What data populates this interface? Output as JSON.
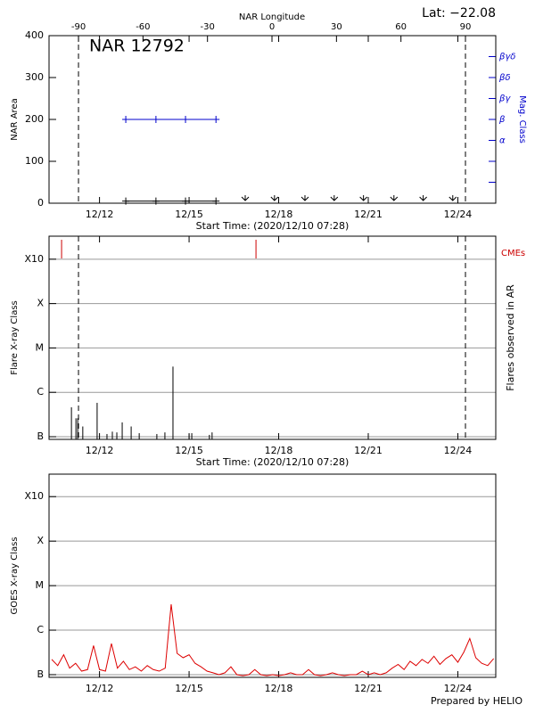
{
  "chart_data": [
    {
      "type": "nar",
      "title": "NAR 12792",
      "annotation": "Lat: −22.08",
      "xlabel": "Start Time: (2020/12/10 07:28)",
      "ylabel": "NAR Area",
      "y2label": "Mag. Class",
      "top_xlabel": "NAR Longitude",
      "xlim": [
        10.31,
        25.27
      ],
      "xticks": [
        {
          "value": 12,
          "label": "12/12"
        },
        {
          "value": 15,
          "label": "12/15"
        },
        {
          "value": 18,
          "label": "12/18"
        },
        {
          "value": 21,
          "label": "12/21"
        },
        {
          "value": 24,
          "label": "12/24"
        }
      ],
      "ylim": [
        0,
        400
      ],
      "yticks": [
        0,
        100,
        200,
        300,
        400
      ],
      "top_xlim": [
        -103.7,
        104.1
      ],
      "top_xticks": [
        -90,
        -60,
        -30,
        0,
        30,
        60,
        90
      ],
      "limb_lines": [
        -90,
        90
      ],
      "y2lim": [
        0,
        8
      ],
      "y2ticks": [
        {
          "value": 3,
          "label": "α"
        },
        {
          "value": 4,
          "label": "β"
        },
        {
          "value": 5,
          "label": "βγ"
        },
        {
          "value": 6,
          "label": "βδ"
        },
        {
          "value": 7,
          "label": "βγδ"
        }
      ],
      "y2minor_ticks": [
        1,
        2
      ],
      "y2color": "#0000cc",
      "x": [
        12.88,
        13.89,
        14.88,
        15.9
      ],
      "series": [
        {
          "color": "#000000",
          "values": [
            5,
            5,
            5,
            5
          ]
        },
        {
          "color": "#0000cc",
          "axis": "y2",
          "values": [
            4,
            4,
            4,
            4
          ]
        }
      ],
      "arrows_x": [
        16.88,
        17.86,
        18.88,
        19.86,
        20.84,
        21.86,
        22.84,
        23.83
      ]
    },
    {
      "type": "flares",
      "xlabel": "Start Time: (2020/12/10 07:28)",
      "ylabel": "Flare X-ray Class",
      "y2label": "Flares observed in AR",
      "cme_label": "CMEs",
      "cme_color": "#cc0000",
      "color": "#000000",
      "xlim": [
        10.31,
        25.27
      ],
      "xticks": [
        {
          "value": 12,
          "label": "12/12"
        },
        {
          "value": 15,
          "label": "12/15"
        },
        {
          "value": 18,
          "label": "12/18"
        },
        {
          "value": 21,
          "label": "12/21"
        },
        {
          "value": 24,
          "label": "12/24"
        }
      ],
      "log": true,
      "ylim": [
        8.7e-08,
        0.0033
      ],
      "yticks": [
        {
          "value": 1e-07,
          "label": "B"
        },
        {
          "value": 1e-06,
          "label": "C"
        },
        {
          "value": 1e-05,
          "label": "M"
        },
        {
          "value": 0.0001,
          "label": "X"
        },
        {
          "value": 0.001,
          "label": "X10"
        }
      ],
      "grid": true,
      "limb_lines": [
        -90,
        90
      ],
      "x": [
        11.06,
        11.21,
        11.27,
        11.44,
        11.92,
        12.25,
        12.43,
        12.58,
        12.76,
        13.06,
        13.33,
        13.92,
        14.19,
        14.46,
        15.0,
        15.09,
        15.68,
        15.77
      ],
      "values": [
        4.6e-07,
        2.6e-07,
        2.6e-07,
        1.7e-07,
        5.8e-07,
        1.15e-07,
        1.3e-07,
        1.25e-07,
        2.1e-07,
        1.7e-07,
        1.2e-07,
        1.15e-07,
        1.25e-07,
        3.8e-06,
        1.15e-07,
        1.2e-07,
        1.1e-07,
        1.25e-07
      ],
      "cmes_x": [
        10.73,
        17.24
      ]
    },
    {
      "type": "goes",
      "ylabel": "GOES X-ray Class",
      "color": "#dd0000",
      "xlim": [
        10.31,
        25.27
      ],
      "xticks": [
        {
          "value": 12,
          "label": "12/12"
        },
        {
          "value": 15,
          "label": "12/15"
        },
        {
          "value": 18,
          "label": "12/18"
        },
        {
          "value": 21,
          "label": "12/21"
        },
        {
          "value": 24,
          "label": "12/24"
        }
      ],
      "log": true,
      "ylim": [
        8.7e-08,
        0.0032
      ],
      "yticks": [
        {
          "value": 1e-07,
          "label": "B"
        },
        {
          "value": 1e-06,
          "label": "C"
        },
        {
          "value": 1e-05,
          "label": "M"
        },
        {
          "value": 0.0001,
          "label": "X"
        },
        {
          "value": 0.001,
          "label": "X10"
        }
      ],
      "grid": true,
      "x": [
        10.4,
        10.6,
        10.8,
        11.0,
        11.2,
        11.4,
        11.6,
        11.8,
        12.0,
        12.2,
        12.4,
        12.6,
        12.8,
        13.0,
        13.2,
        13.4,
        13.6,
        13.8,
        14.0,
        14.2,
        14.4,
        14.6,
        14.8,
        15.0,
        15.2,
        15.4,
        15.6,
        15.8,
        16.0,
        16.2,
        16.4,
        16.6,
        16.8,
        17.0,
        17.2,
        17.4,
        17.6,
        17.8,
        18.0,
        18.2,
        18.4,
        18.6,
        18.8,
        19.0,
        19.2,
        19.4,
        19.6,
        19.8,
        20.0,
        20.2,
        20.4,
        20.6,
        20.8,
        21.0,
        21.2,
        21.4,
        21.6,
        21.8,
        22.0,
        22.2,
        22.4,
        22.6,
        22.8,
        23.0,
        23.2,
        23.4,
        23.6,
        23.8,
        24.0,
        24.2,
        24.4,
        24.6,
        24.8,
        25.0,
        25.2
      ],
      "values": [
        2.2e-07,
        1.6e-07,
        2.8e-07,
        1.4e-07,
        1.8e-07,
        1.2e-07,
        1.3e-07,
        4.5e-07,
        1.3e-07,
        1.2e-07,
        5e-07,
        1.4e-07,
        2e-07,
        1.3e-07,
        1.5e-07,
        1.2e-07,
        1.6e-07,
        1.3e-07,
        1.2e-07,
        1.4e-07,
        3.8e-06,
        3e-07,
        2.4e-07,
        2.8e-07,
        1.8e-07,
        1.5e-07,
        1.2e-07,
        1.1e-07,
        1e-07,
        1.1e-07,
        1.5e-07,
        1e-07,
        9.5e-08,
        1e-07,
        1.3e-07,
        1e-07,
        9.5e-08,
        1e-07,
        9.5e-08,
        1e-07,
        1.1e-07,
        1e-07,
        1e-07,
        1.3e-07,
        1e-07,
        9.5e-08,
        1e-07,
        1.1e-07,
        1e-07,
        9.5e-08,
        1e-07,
        1e-07,
        1.2e-07,
        1e-07,
        1.1e-07,
        1e-07,
        1.1e-07,
        1.4e-07,
        1.7e-07,
        1.3e-07,
        2e-07,
        1.6e-07,
        2.2e-07,
        1.8e-07,
        2.6e-07,
        1.7e-07,
        2.3e-07,
        2.8e-07,
        1.9e-07,
        3.2e-07,
        6.5e-07,
        2.4e-07,
        1.8e-07,
        1.6e-07,
        2.3e-07
      ]
    }
  ],
  "footer": "Prepared by HELIO"
}
